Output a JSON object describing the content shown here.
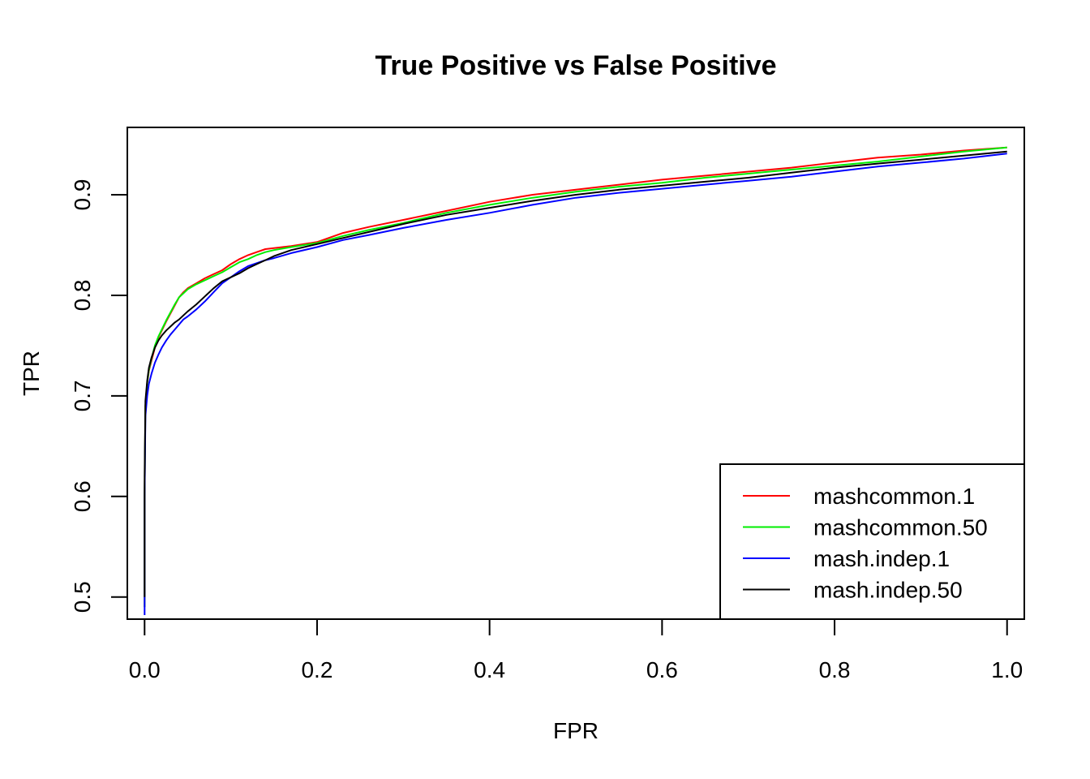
{
  "chart_data": {
    "type": "line",
    "title": "True Positive vs False Positive",
    "xlabel": "FPR",
    "ylabel": "TPR",
    "xlim": [
      -0.02,
      1.02
    ],
    "ylim": [
      0.478,
      0.967
    ],
    "xticks": [
      0.0,
      0.2,
      0.4,
      0.6,
      0.8,
      1.0
    ],
    "xtick_labels": [
      "0.0",
      "0.2",
      "0.4",
      "0.6",
      "0.8",
      "1.0"
    ],
    "yticks": [
      0.5,
      0.6,
      0.7,
      0.8,
      0.9
    ],
    "ytick_labels": [
      "0.5",
      "0.6",
      "0.7",
      "0.8",
      "0.9"
    ],
    "grid": false,
    "legend_position": "bottom-right",
    "series": [
      {
        "name": "mashcommon.1",
        "color": "#ff0000",
        "x": [
          0.0,
          0.0,
          0.001,
          0.003,
          0.005,
          0.008,
          0.012,
          0.016,
          0.02,
          0.025,
          0.03,
          0.035,
          0.04,
          0.045,
          0.05,
          0.06,
          0.07,
          0.08,
          0.09,
          0.1,
          0.11,
          0.12,
          0.13,
          0.14,
          0.15,
          0.17,
          0.2,
          0.23,
          0.26,
          0.3,
          0.35,
          0.4,
          0.45,
          0.5,
          0.55,
          0.6,
          0.65,
          0.7,
          0.75,
          0.8,
          0.85,
          0.9,
          0.95,
          1.0
        ],
        "y": [
          0.49,
          0.6,
          0.69,
          0.712,
          0.725,
          0.735,
          0.748,
          0.758,
          0.765,
          0.774,
          0.782,
          0.79,
          0.798,
          0.803,
          0.807,
          0.812,
          0.817,
          0.821,
          0.825,
          0.831,
          0.836,
          0.84,
          0.843,
          0.846,
          0.847,
          0.849,
          0.853,
          0.862,
          0.868,
          0.875,
          0.884,
          0.893,
          0.9,
          0.905,
          0.91,
          0.915,
          0.919,
          0.923,
          0.927,
          0.932,
          0.937,
          0.94,
          0.944,
          0.947
        ]
      },
      {
        "name": "mashcommon.50",
        "color": "#00ee00",
        "x": [
          0.0,
          0.0,
          0.001,
          0.003,
          0.005,
          0.008,
          0.012,
          0.016,
          0.02,
          0.025,
          0.03,
          0.035,
          0.04,
          0.045,
          0.05,
          0.06,
          0.07,
          0.08,
          0.09,
          0.1,
          0.11,
          0.12,
          0.13,
          0.14,
          0.15,
          0.17,
          0.2,
          0.23,
          0.26,
          0.3,
          0.35,
          0.4,
          0.45,
          0.5,
          0.55,
          0.6,
          0.65,
          0.7,
          0.75,
          0.8,
          0.85,
          0.9,
          0.95,
          1.0
        ],
        "y": [
          0.49,
          0.6,
          0.69,
          0.713,
          0.726,
          0.737,
          0.75,
          0.759,
          0.766,
          0.775,
          0.783,
          0.791,
          0.798,
          0.802,
          0.806,
          0.811,
          0.815,
          0.819,
          0.823,
          0.828,
          0.833,
          0.836,
          0.84,
          0.843,
          0.845,
          0.848,
          0.852,
          0.859,
          0.865,
          0.872,
          0.882,
          0.89,
          0.897,
          0.903,
          0.908,
          0.912,
          0.917,
          0.921,
          0.925,
          0.929,
          0.933,
          0.938,
          0.943,
          0.947
        ]
      },
      {
        "name": "mash.indep.1",
        "color": "#0000ff",
        "x": [
          0.0,
          0.0,
          0.001,
          0.003,
          0.005,
          0.008,
          0.012,
          0.016,
          0.02,
          0.025,
          0.03,
          0.035,
          0.04,
          0.045,
          0.05,
          0.06,
          0.07,
          0.08,
          0.09,
          0.1,
          0.11,
          0.12,
          0.13,
          0.14,
          0.15,
          0.17,
          0.2,
          0.23,
          0.26,
          0.3,
          0.35,
          0.4,
          0.45,
          0.5,
          0.55,
          0.6,
          0.65,
          0.7,
          0.75,
          0.8,
          0.85,
          0.9,
          0.95,
          1.0
        ],
        "y": [
          0.482,
          0.6,
          0.68,
          0.7,
          0.712,
          0.722,
          0.733,
          0.741,
          0.748,
          0.755,
          0.761,
          0.766,
          0.771,
          0.776,
          0.779,
          0.786,
          0.794,
          0.803,
          0.812,
          0.818,
          0.824,
          0.829,
          0.832,
          0.835,
          0.837,
          0.842,
          0.848,
          0.855,
          0.86,
          0.867,
          0.875,
          0.882,
          0.89,
          0.897,
          0.902,
          0.906,
          0.91,
          0.914,
          0.918,
          0.923,
          0.928,
          0.932,
          0.936,
          0.941
        ]
      },
      {
        "name": "mash.indep.50",
        "color": "#000000",
        "x": [
          0.0,
          0.0,
          0.001,
          0.003,
          0.005,
          0.008,
          0.012,
          0.016,
          0.02,
          0.025,
          0.03,
          0.035,
          0.04,
          0.045,
          0.05,
          0.06,
          0.07,
          0.08,
          0.09,
          0.1,
          0.11,
          0.12,
          0.13,
          0.14,
          0.15,
          0.17,
          0.2,
          0.23,
          0.26,
          0.3,
          0.35,
          0.4,
          0.45,
          0.5,
          0.55,
          0.6,
          0.65,
          0.7,
          0.75,
          0.8,
          0.85,
          0.9,
          0.95,
          1.0
        ],
        "y": [
          0.5,
          0.62,
          0.695,
          0.715,
          0.728,
          0.738,
          0.748,
          0.755,
          0.76,
          0.765,
          0.769,
          0.773,
          0.776,
          0.78,
          0.784,
          0.791,
          0.799,
          0.807,
          0.814,
          0.818,
          0.822,
          0.827,
          0.831,
          0.835,
          0.839,
          0.845,
          0.851,
          0.857,
          0.863,
          0.871,
          0.88,
          0.887,
          0.894,
          0.9,
          0.905,
          0.909,
          0.913,
          0.917,
          0.922,
          0.927,
          0.931,
          0.935,
          0.939,
          0.943
        ]
      }
    ]
  }
}
